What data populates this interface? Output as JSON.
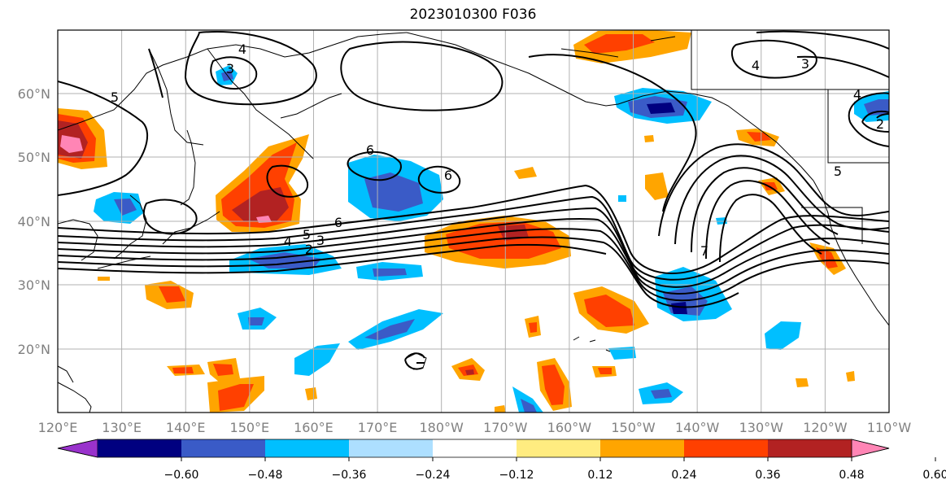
{
  "title": "2023010300 F036",
  "lat_labels": [
    "60°N",
    "50°N",
    "40°N",
    "30°N",
    "20°N"
  ],
  "lon_labels": [
    "120°E",
    "130°E",
    "140°E",
    "150°E",
    "160°E",
    "170°E",
    "180°W",
    "170°W",
    "160°W",
    "150°W",
    "140°W",
    "130°W",
    "120°W",
    "110°W"
  ],
  "colorbar": {
    "colors": [
      "#9932CC",
      "#000080",
      "#3A5BC7",
      "#00BFFF",
      "#ADDFFF",
      "#FFFFFF",
      "#FFEC80",
      "#FFA500",
      "#FF4000",
      "#B22222",
      "#FF85B5"
    ],
    "tick_labels": [
      "−0.60",
      "−0.48",
      "−0.36",
      "−0.24",
      "−0.12",
      "0.12",
      "0.24",
      "0.36",
      "0.48",
      "0.60"
    ]
  },
  "contour_labels": [
    "4",
    "3",
    "5",
    "6",
    "6",
    "6",
    "4",
    "5",
    "3",
    "2",
    "7",
    "4",
    "3",
    "4",
    "2",
    "5"
  ]
}
